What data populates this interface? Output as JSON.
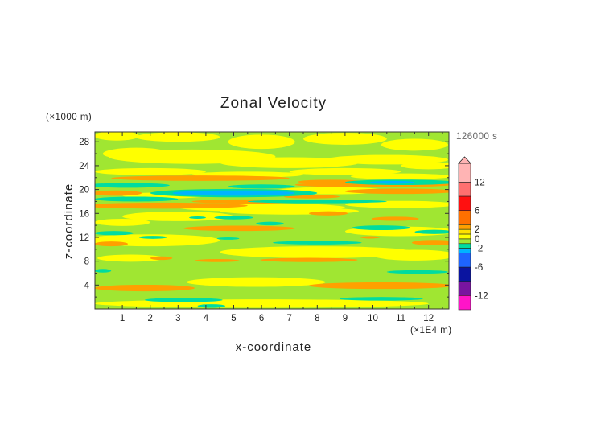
{
  "chart_data": {
    "type": "heatmap",
    "title": "Zonal Velocity",
    "xlabel": "x-coordinate",
    "ylabel": "z-coordinate",
    "x_unit": "(×1E4 m)",
    "y_unit": "(×1000 m)",
    "time_label": "126000 s",
    "xlim": [
      0,
      12.73
    ],
    "ylim": [
      0,
      29.6
    ],
    "x_ticks": [
      "1",
      "2",
      "3",
      "4",
      "5",
      "6",
      "7",
      "8",
      "9",
      "10",
      "11",
      "12"
    ],
    "y_ticks": [
      "4",
      "8",
      "12",
      "16",
      "20",
      "24",
      "28"
    ],
    "background_value": -0.5,
    "colorbar": {
      "levels": [
        16,
        12,
        9,
        6,
        3,
        2,
        1,
        0,
        -1,
        -2,
        -3,
        -6,
        -9,
        -12,
        -15
      ],
      "colors": [
        "#ffb4b4",
        "#ff7070",
        "#ff1010",
        "#ff7000",
        "#ffa000",
        "#ffe000",
        "#ffff00",
        "#a0e632",
        "#00dca0",
        "#00b4ff",
        "#1e64ff",
        "#0a14a0",
        "#7814a0",
        "#ff14c8"
      ],
      "labels": [
        "12",
        "6",
        "2",
        "0",
        "-2",
        "-6",
        "-12"
      ],
      "label_values": [
        12,
        6,
        2,
        0,
        -2,
        -6,
        -12
      ]
    },
    "features": [
      {
        "x": 0.8,
        "z": 29,
        "dx": 0.8,
        "dz": 0.8,
        "v": 0.5
      },
      {
        "x": 3,
        "z": 28.8,
        "dx": 1.5,
        "dz": 0.8,
        "v": 0.5
      },
      {
        "x": 6,
        "z": 28,
        "dx": 1.2,
        "dz": 1.2,
        "v": 0.5
      },
      {
        "x": 9,
        "z": 28.5,
        "dx": 1.5,
        "dz": 1,
        "v": 0.5
      },
      {
        "x": 11.5,
        "z": 27.5,
        "dx": 1.2,
        "dz": 1,
        "v": 0.5
      },
      {
        "x": 3.5,
        "z": 25.5,
        "dx": 3,
        "dz": 1.2,
        "v": 0.5
      },
      {
        "x": 1.5,
        "z": 26,
        "dx": 1.2,
        "dz": 1,
        "v": 0.5
      },
      {
        "x": 7,
        "z": 24.5,
        "dx": 2.5,
        "dz": 0.9,
        "v": 0.5
      },
      {
        "x": 10.5,
        "z": 25,
        "dx": 2.2,
        "dz": 0.8,
        "v": 0.5
      },
      {
        "x": 12,
        "z": 24,
        "dx": 1,
        "dz": 0.6,
        "v": 0.5
      },
      {
        "x": 2,
        "z": 23,
        "dx": 2,
        "dz": 0.6,
        "v": 0.5
      },
      {
        "x": 9,
        "z": 23,
        "dx": 2,
        "dz": 0.6,
        "v": 0.5
      },
      {
        "x": 5.5,
        "z": 22.5,
        "dx": 2,
        "dz": 0.5,
        "v": 0.5
      },
      {
        "x": 11,
        "z": 22.2,
        "dx": 1.8,
        "dz": 0.5,
        "v": 0.5
      },
      {
        "x": 8.5,
        "z": 19.8,
        "dx": 2,
        "dz": 0.6,
        "v": 0.5
      },
      {
        "x": 2.5,
        "z": 19.0,
        "dx": 1.5,
        "dz": 0.5,
        "v": 0.5
      },
      {
        "x": 6,
        "z": 17,
        "dx": 3,
        "dz": 0.7,
        "v": 0.5
      },
      {
        "x": 11,
        "z": 17.5,
        "dx": 2,
        "dz": 0.6,
        "v": 0.5
      },
      {
        "x": 7,
        "z": 16.4,
        "dx": 2.5,
        "dz": 0.6,
        "v": 0.5
      },
      {
        "x": 3,
        "z": 15.5,
        "dx": 2,
        "dz": 0.8,
        "v": 0.5
      },
      {
        "x": 1,
        "z": 14.5,
        "dx": 1,
        "dz": 0.6,
        "v": 0.5
      },
      {
        "x": 11,
        "z": 13,
        "dx": 2,
        "dz": 0.8,
        "v": 0.5
      },
      {
        "x": 2,
        "z": 11.5,
        "dx": 2.5,
        "dz": 1,
        "v": 0.5
      },
      {
        "x": 8,
        "z": 9.5,
        "dx": 3.5,
        "dz": 1.0,
        "v": 0.5
      },
      {
        "x": 11.5,
        "z": 9,
        "dx": 1.5,
        "dz": 0.9,
        "v": 0.5
      },
      {
        "x": 1.3,
        "z": 8.5,
        "dx": 1.2,
        "dz": 0.6,
        "v": 0.5
      },
      {
        "x": 5.8,
        "z": 4.5,
        "dx": 2.5,
        "dz": 0.8,
        "v": 0.5
      },
      {
        "x": 6,
        "z": 0.9,
        "dx": 6,
        "dz": 0.7,
        "v": 0.5
      },
      {
        "x": 3.8,
        "z": 21.9,
        "dx": 3.2,
        "dz": 0.45,
        "v": 2.5
      },
      {
        "x": 10,
        "z": 20.8,
        "dx": 2.8,
        "dz": 0.45,
        "v": 2.5
      },
      {
        "x": 8.5,
        "z": 21.3,
        "dx": 1.2,
        "dz": 0.35,
        "v": 2.5
      },
      {
        "x": 0.8,
        "z": 19.4,
        "dx": 0.9,
        "dz": 0.45,
        "v": 2.5
      },
      {
        "x": 11,
        "z": 19.7,
        "dx": 2,
        "dz": 0.45,
        "v": 2.5
      },
      {
        "x": 7.8,
        "z": 18.8,
        "dx": 1,
        "dz": 0.3,
        "v": 2.5
      },
      {
        "x": 2.5,
        "z": 17.3,
        "dx": 3,
        "dz": 0.5,
        "v": 2.5
      },
      {
        "x": 5.5,
        "z": 18,
        "dx": 2,
        "dz": 0.35,
        "v": 2.5
      },
      {
        "x": 8.4,
        "z": 16,
        "dx": 0.7,
        "dz": 0.35,
        "v": 2.5
      },
      {
        "x": 10.8,
        "z": 15.1,
        "dx": 0.85,
        "dz": 0.35,
        "v": 2.5
      },
      {
        "x": 5.2,
        "z": 13.5,
        "dx": 2.0,
        "dz": 0.45,
        "v": 2.5
      },
      {
        "x": 9.9,
        "z": 12,
        "dx": 0.35,
        "dz": 0.2,
        "v": 2.5
      },
      {
        "x": 0.6,
        "z": 10.9,
        "dx": 0.6,
        "dz": 0.4,
        "v": 2.5
      },
      {
        "x": 12.2,
        "z": 11.1,
        "dx": 0.8,
        "dz": 0.45,
        "v": 2.5
      },
      {
        "x": 2.4,
        "z": 8.5,
        "dx": 0.4,
        "dz": 0.3,
        "v": 2.5
      },
      {
        "x": 7.7,
        "z": 8.2,
        "dx": 1.75,
        "dz": 0.35,
        "v": 2.5
      },
      {
        "x": 4.4,
        "z": 8.1,
        "dx": 0.8,
        "dz": 0.25,
        "v": 2.5
      },
      {
        "x": 1.8,
        "z": 3.5,
        "dx": 1.8,
        "dz": 0.55,
        "v": 2.5
      },
      {
        "x": 10.3,
        "z": 3.9,
        "dx": 2.6,
        "dz": 0.55,
        "v": 2.5
      },
      {
        "x": 5,
        "z": 19.4,
        "dx": 3,
        "dz": 0.7,
        "v": -1.5
      },
      {
        "x": 1.2,
        "z": 20.7,
        "dx": 1.5,
        "dz": 0.4,
        "v": -1.5
      },
      {
        "x": 11,
        "z": 21.2,
        "dx": 2,
        "dz": 0.45,
        "v": -1.5
      },
      {
        "x": 6,
        "z": 20.5,
        "dx": 1.2,
        "dz": 0.35,
        "v": -1.5
      },
      {
        "x": 1.5,
        "z": 18.4,
        "dx": 1.5,
        "dz": 0.4,
        "v": -1.5
      },
      {
        "x": 8,
        "z": 18,
        "dx": 2.5,
        "dz": 0.3,
        "v": -1.5
      },
      {
        "x": 5.0,
        "z": 15.3,
        "dx": 0.7,
        "dz": 0.3,
        "v": -1.5
      },
      {
        "x": 3.7,
        "z": 15.3,
        "dx": 0.3,
        "dz": 0.2,
        "v": -1.5
      },
      {
        "x": 6.3,
        "z": 14.3,
        "dx": 0.5,
        "dz": 0.3,
        "v": -1.5
      },
      {
        "x": 10.3,
        "z": 13.6,
        "dx": 1.05,
        "dz": 0.4,
        "v": -1.5
      },
      {
        "x": 12.2,
        "z": 12.9,
        "dx": 0.7,
        "dz": 0.35,
        "v": -1.5
      },
      {
        "x": 0.7,
        "z": 12.7,
        "dx": 0.7,
        "dz": 0.35,
        "v": -1.5
      },
      {
        "x": 2.1,
        "z": 12,
        "dx": 0.5,
        "dz": 0.25,
        "v": -1.5
      },
      {
        "x": 4.8,
        "z": 11.8,
        "dx": 0.4,
        "dz": 0.2,
        "v": -1.5
      },
      {
        "x": 8.0,
        "z": 11.1,
        "dx": 1.6,
        "dz": 0.3,
        "v": -1.5
      },
      {
        "x": 11.6,
        "z": 6.2,
        "dx": 1.1,
        "dz": 0.3,
        "v": -1.5
      },
      {
        "x": 0.3,
        "z": 6.4,
        "dx": 0.3,
        "dz": 0.3,
        "v": -1.5
      },
      {
        "x": 3.2,
        "z": 1.5,
        "dx": 1.4,
        "dz": 0.35,
        "v": -1.5
      },
      {
        "x": 4.2,
        "z": 0.5,
        "dx": 0.5,
        "dz": 0.3,
        "v": -1.5
      },
      {
        "x": 10.3,
        "z": 1.7,
        "dx": 1.5,
        "dz": 0.3,
        "v": -1.5
      },
      {
        "x": 5,
        "z": 19.4,
        "dx": 2.2,
        "dz": 0.45,
        "v": -2.5
      },
      {
        "x": 10.7,
        "z": 21.2,
        "dx": 0.8,
        "dz": 0.25,
        "v": -2.5
      }
    ]
  }
}
